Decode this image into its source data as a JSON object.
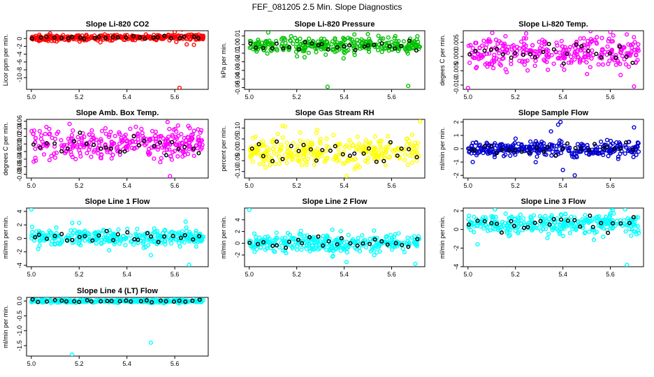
{
  "figure": {
    "title": "FEF_081205  2.5 Min. Slope Diagnostics",
    "reference_marker_color": "#000000"
  },
  "chart_data": [
    {
      "id": "co2",
      "type": "scatter",
      "title": "Slope Li-820 CO2",
      "ylabel": "Licor ppm per min.",
      "color": "#ff0000",
      "xlim": [
        4.98,
        5.74
      ],
      "ylim": [
        -13,
        2
      ],
      "xticks": [
        5.0,
        5.2,
        5.4,
        5.6
      ],
      "yticks": [
        -10,
        -8,
        -6,
        -4,
        -2,
        0
      ],
      "x_range": [
        5.0,
        5.72
      ],
      "n_points": 320,
      "center": 0.1,
      "trend": 0.3,
      "spread": 0.35,
      "outliers": [
        [
          5.62,
          -12.6
        ],
        [
          5.6,
          1.6
        ],
        [
          5.63,
          2.3
        ],
        [
          5.65,
          -1.5
        ],
        [
          5.68,
          -1.6
        ],
        [
          5.7,
          1.0
        ]
      ]
    },
    {
      "id": "pressure",
      "type": "scatter",
      "title": "Slope Li-820 Pressure",
      "ylabel": "kPa per min.",
      "color": "#00c000",
      "xlim": [
        4.98,
        5.74
      ],
      "ylim": [
        -0.052,
        0.016
      ],
      "xticks": [
        5.0,
        5.2,
        5.4,
        5.6
      ],
      "yticks": [
        -0.05,
        -0.04,
        -0.03,
        -0.02,
        -0.01,
        0.0,
        0.01
      ],
      "x_range": [
        5.0,
        5.72
      ],
      "n_points": 300,
      "center": -0.001,
      "trend": 0,
      "spread": 0.005,
      "outliers": [
        [
          5.33,
          -0.049
        ],
        [
          5.67,
          -0.048
        ],
        [
          5.08,
          0.014
        ],
        [
          5.5,
          0.012
        ]
      ]
    },
    {
      "id": "temp",
      "type": "scatter",
      "title": "Slope Li-820 Temp.",
      "ylabel": "degees C per min.",
      "color": "#ff00ff",
      "xlim": [
        4.98,
        5.74
      ],
      "ylim": [
        -0.0115,
        0.009
      ],
      "xticks": [
        5.0,
        5.2,
        5.4,
        5.6
      ],
      "yticks": [
        -0.01,
        -0.005,
        0.0,
        0.005
      ],
      "x_range": [
        5.0,
        5.72
      ],
      "n_points": 320,
      "center": 0.0015,
      "trend": 0,
      "spread": 0.0028,
      "outliers": [
        [
          5.0,
          -0.011
        ],
        [
          5.7,
          -0.0105
        ],
        [
          5.6,
          0.0085
        ]
      ]
    },
    {
      "id": "box",
      "type": "scatter",
      "title": "Slope Amb. Box Temp.",
      "ylabel": "degrees C per min.",
      "color": "#ff00ff",
      "xlim": [
        4.98,
        5.74
      ],
      "ylim": [
        -0.09,
        0.065
      ],
      "xticks": [
        5.0,
        5.2,
        5.4,
        5.6
      ],
      "yticks": [
        -0.08,
        -0.06,
        -0.04,
        -0.02,
        0.0,
        0.02,
        0.04,
        0.06
      ],
      "x_range": [
        5.0,
        5.72
      ],
      "n_points": 320,
      "center": 0.0,
      "trend": 0,
      "spread": 0.02,
      "outliers": [
        [
          5.58,
          -0.085
        ],
        [
          5.57,
          0.058
        ]
      ]
    },
    {
      "id": "rh",
      "type": "scatter",
      "title": "Slope Gas Stream RH",
      "ylabel": "percent per min.",
      "color": "#ffff00",
      "xlim": [
        4.98,
        5.74
      ],
      "ylim": [
        -0.13,
        0.14
      ],
      "xticks": [
        5.0,
        5.2,
        5.4,
        5.6
      ],
      "yticks": [
        -0.1,
        -0.05,
        0.0,
        0.05,
        0.1,
        0.15
      ],
      "x_range": [
        5.0,
        5.72
      ],
      "n_points": 300,
      "center": -0.005,
      "trend": 0,
      "spread": 0.035,
      "outliers": [
        [
          5.41,
          -0.12
        ],
        [
          5.72,
          0.13
        ],
        [
          5.14,
          0.11
        ]
      ]
    },
    {
      "id": "sample",
      "type": "scatter",
      "title": "Slope Sample Flow",
      "ylabel": "ml/min per min.",
      "color": "#0000d0",
      "xlim": [
        4.98,
        5.74
      ],
      "ylim": [
        -2.2,
        2.2
      ],
      "xticks": [
        5.0,
        5.2,
        5.4,
        5.6
      ],
      "yticks": [
        -2,
        -1,
        0,
        1,
        2
      ],
      "x_range": [
        5.0,
        5.72
      ],
      "n_points": 320,
      "center": 0.0,
      "trend": 0,
      "spread": 0.28,
      "outliers": [
        [
          5.38,
          1.8
        ],
        [
          5.39,
          2.0
        ],
        [
          5.45,
          -2.0
        ],
        [
          5.35,
          1.3
        ],
        [
          5.4,
          -1.6
        ],
        [
          5.7,
          1.6
        ],
        [
          5.02,
          -1.0
        ]
      ]
    },
    {
      "id": "line1",
      "type": "scatter",
      "title": "Slope Line 1 Flow",
      "ylabel": "ml/min per min.",
      "color": "#00ffff",
      "xlim": [
        4.98,
        5.74
      ],
      "ylim": [
        -4.2,
        4.5
      ],
      "xticks": [
        5.0,
        5.2,
        5.4,
        5.6
      ],
      "yticks": [
        -4,
        -2,
        0,
        2,
        4
      ],
      "x_range": [
        5.0,
        5.72
      ],
      "n_points": 320,
      "center": 0.1,
      "trend": 0,
      "spread": 0.6,
      "outliers": [
        [
          5.0,
          4.3
        ],
        [
          5.66,
          -3.9
        ],
        [
          5.5,
          -2.5
        ],
        [
          5.2,
          2.3
        ]
      ]
    },
    {
      "id": "line2",
      "type": "scatter",
      "title": "Slope Line 2 Flow",
      "ylabel": "ml/min per min.",
      "color": "#00ffff",
      "xlim": [
        4.98,
        5.74
      ],
      "ylim": [
        -4.0,
        6.0
      ],
      "xticks": [
        5.0,
        5.2,
        5.4,
        5.6
      ],
      "yticks": [
        -2,
        0,
        2,
        4
      ],
      "x_range": [
        5.0,
        5.72
      ],
      "n_points": 320,
      "center": 0.0,
      "trend": 0,
      "spread": 0.75,
      "outliers": [
        [
          5.0,
          5.7
        ],
        [
          5.7,
          -3.5
        ],
        [
          5.41,
          -3.2
        ],
        [
          5.35,
          2.3
        ]
      ]
    },
    {
      "id": "line3",
      "type": "scatter",
      "title": "Slope Line 3 Flow",
      "ylabel": "ml/min per min.",
      "color": "#00ffff",
      "xlim": [
        4.98,
        5.74
      ],
      "ylim": [
        -4.0,
        2.3
      ],
      "xticks": [
        5.0,
        5.2,
        5.4,
        5.6
      ],
      "yticks": [
        -4,
        -2,
        0,
        2
      ],
      "x_range": [
        5.0,
        5.72
      ],
      "n_points": 320,
      "center": 0.6,
      "trend": 0,
      "spread": 0.55,
      "outliers": [
        [
          5.67,
          -3.8
        ],
        [
          5.04,
          -1.6
        ],
        [
          5.61,
          2.1
        ]
      ]
    },
    {
      "id": "line4",
      "type": "scatter",
      "title": "Slope Line 4 (LT) Flow",
      "ylabel": "ml/min per min.",
      "color": "#00ffff",
      "xlim": [
        4.98,
        5.74
      ],
      "ylim": [
        -1.85,
        0.12
      ],
      "xticks": [
        5.0,
        5.2,
        5.4,
        5.6
      ],
      "yticks": [
        -1.5,
        -1.0,
        -0.5,
        0.0
      ],
      "x_range": [
        5.0,
        5.72
      ],
      "n_points": 320,
      "center": 0.0,
      "trend": 0,
      "spread": 0.03,
      "outliers": [
        [
          5.17,
          -1.8
        ],
        [
          5.5,
          -1.4
        ]
      ]
    }
  ]
}
